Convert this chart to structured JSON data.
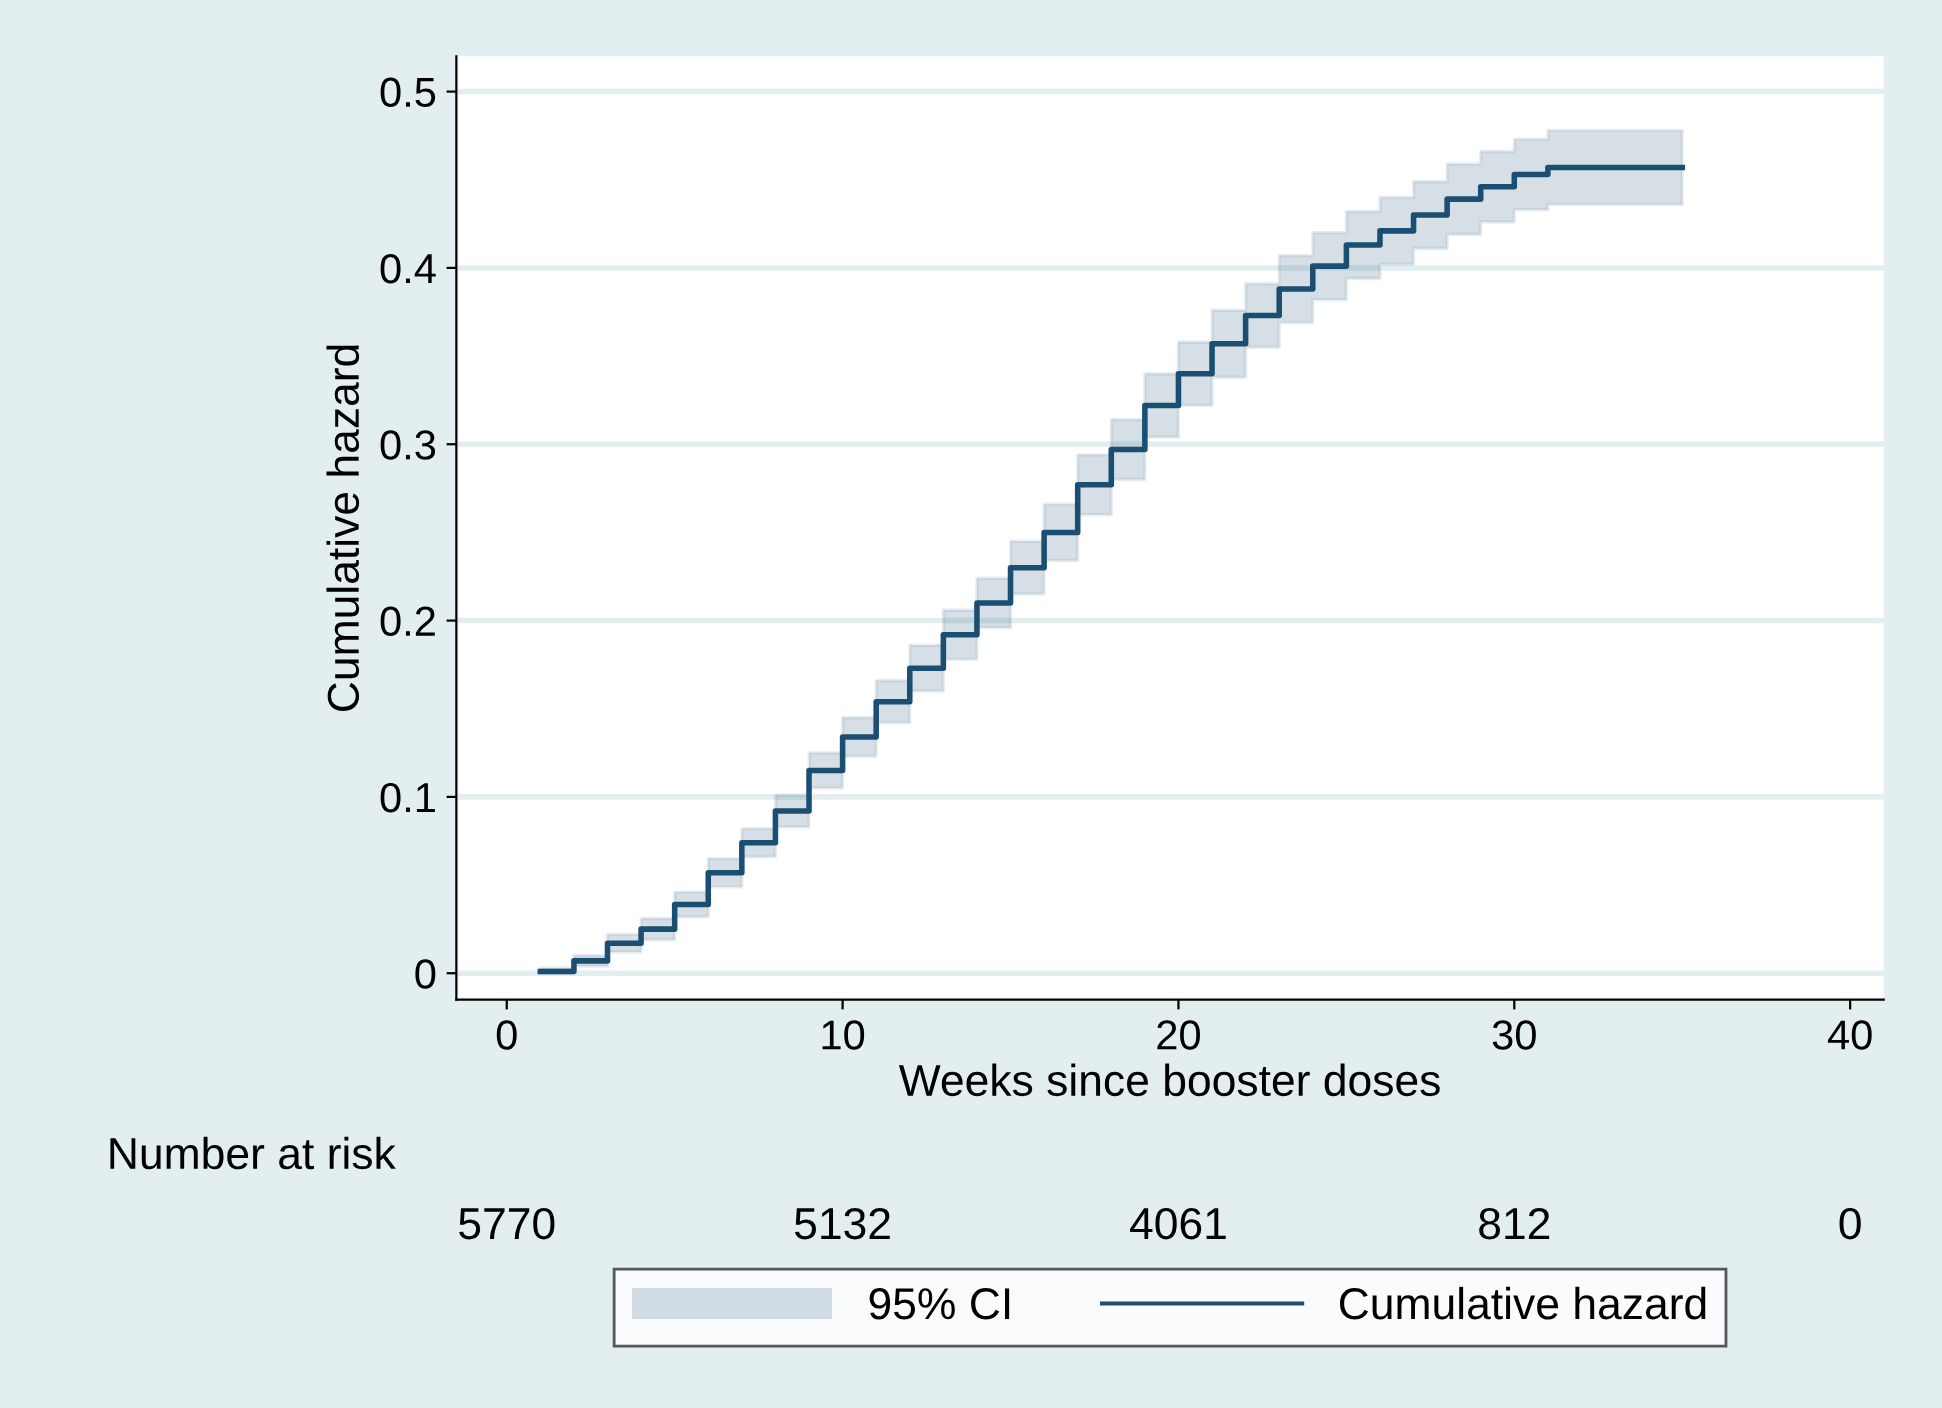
{
  "chart_data": {
    "type": "step",
    "xlabel": "Weeks since booster doses",
    "ylabel": "Cumulative hazard",
    "x": [
      1,
      2,
      3,
      4,
      5,
      6,
      7,
      8,
      9,
      10,
      11,
      12,
      13,
      14,
      15,
      16,
      17,
      18,
      19,
      20,
      21,
      22,
      23,
      24,
      25,
      26,
      27,
      28,
      29,
      30,
      31,
      35
    ],
    "series": [
      {
        "name": "Cumulative hazard",
        "color": "#1a4f72",
        "lower": [
          0.0,
          0.004,
          0.012,
          0.019,
          0.032,
          0.049,
          0.066,
          0.083,
          0.105,
          0.123,
          0.142,
          0.16,
          0.178,
          0.196,
          0.215,
          0.234,
          0.26,
          0.28,
          0.304,
          0.322,
          0.338,
          0.355,
          0.369,
          0.382,
          0.394,
          0.402,
          0.411,
          0.419,
          0.426,
          0.433,
          0.436,
          0.436
        ],
        "upper": [
          0.003,
          0.01,
          0.022,
          0.031,
          0.046,
          0.065,
          0.082,
          0.101,
          0.125,
          0.145,
          0.166,
          0.186,
          0.206,
          0.224,
          0.245,
          0.266,
          0.294,
          0.314,
          0.34,
          0.358,
          0.376,
          0.391,
          0.407,
          0.42,
          0.432,
          0.44,
          0.449,
          0.459,
          0.466,
          0.473,
          0.478,
          0.478
        ],
        "values": [
          0.001,
          0.007,
          0.017,
          0.025,
          0.039,
          0.057,
          0.074,
          0.092,
          0.115,
          0.134,
          0.154,
          0.173,
          0.192,
          0.21,
          0.23,
          0.25,
          0.277,
          0.297,
          0.322,
          0.34,
          0.357,
          0.373,
          0.388,
          0.401,
          0.413,
          0.421,
          0.43,
          0.439,
          0.446,
          0.453,
          0.457,
          0.457
        ]
      }
    ],
    "xlim": [
      -1.5,
      41
    ],
    "xticks": [
      0,
      10,
      20,
      30,
      40
    ],
    "ylim": [
      -0.015,
      0.52
    ],
    "yticks": [
      0,
      0.1,
      0.2,
      0.3,
      0.4,
      0.5
    ],
    "grid": "y",
    "legend": "bottom",
    "annotations": [
      "Number at risk",
      "95% CI",
      "5770",
      "5132",
      "4061",
      "812",
      "0"
    ]
  }
}
